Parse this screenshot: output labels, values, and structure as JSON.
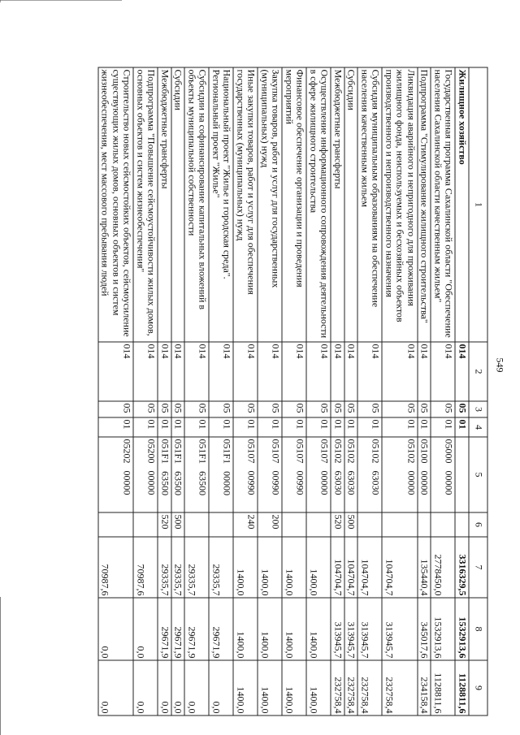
{
  "page_number": "549",
  "columns": [
    "1",
    "2",
    "3",
    "4",
    "5",
    "6",
    "7",
    "8",
    "9"
  ],
  "rows": [
    {
      "name": "Жилищное хозяйство",
      "c2": "014",
      "c3": "05",
      "c4": "01",
      "c5": "",
      "c6": "",
      "c7": "3316329,5",
      "c8": "1532913,6",
      "c9": "1128811,6",
      "bold": true
    },
    {
      "name": "Государственная программа Сахалинской области \"Обеспечение населения Сахалинской области качественным жильем\"",
      "c2": "014",
      "c3": "05",
      "c4": "01",
      "c5": "05000   00000",
      "c6": "",
      "c7": "2778450,0",
      "c8": "1532913,6",
      "c9": "1128811,6"
    },
    {
      "name": "Подпрограмма \"Стимулирование жилищного строительства\"",
      "c2": "014",
      "c3": "05",
      "c4": "01",
      "c5": "05100   00000",
      "c6": "",
      "c7": "135440,4",
      "c8": "345017,6",
      "c9": "234158,4"
    },
    {
      "name": "Ликвидация аварийного и непригодного для проживания жилищного фонда, неиспользуемых и бесхозяйных объектов производственного и непроизводственного назначения",
      "c2": "014",
      "c3": "05",
      "c4": "01",
      "c5": "05102   00000",
      "c6": "",
      "c7": "104704,7",
      "c8": "313945,7",
      "c9": "232758,4"
    },
    {
      "name": "Субсидия муниципальным образованиям на обеспечение населения качественным жильем",
      "c2": "014",
      "c3": "05",
      "c4": "01",
      "c5": "05102   63030",
      "c6": "",
      "c7": "104704,7",
      "c8": "313945,7",
      "c9": "232758,4"
    },
    {
      "name": "Субсидии",
      "c2": "014",
      "c3": "05",
      "c4": "01",
      "c5": "05102   63030",
      "c6": "500",
      "c7": "104704,7",
      "c8": "313945,7",
      "c9": "232758,4"
    },
    {
      "name": "Межбюджетные трансферты",
      "c2": "014",
      "c3": "05",
      "c4": "01",
      "c5": "05102   63030",
      "c6": "520",
      "c7": "104704,7",
      "c8": "313945,7",
      "c9": "232758,4"
    },
    {
      "name": "Осуществление информационного сопровождения деятельности в сфере жилищного строительства",
      "c2": "014",
      "c3": "05",
      "c4": "01",
      "c5": "05107   00000",
      "c6": "",
      "c7": "1400,0",
      "c8": "1400,0",
      "c9": "1400,0"
    },
    {
      "name": "Финансовое обеспечение организации и проведения мероприятий",
      "c2": "014",
      "c3": "05",
      "c4": "01",
      "c5": "05107   00990",
      "c6": "",
      "c7": "1400,0",
      "c8": "1400,0",
      "c9": "1400,0"
    },
    {
      "name": "Закупка товаров, работ и услуг для государственных (муниципальных) нужд",
      "c2": "014",
      "c3": "05",
      "c4": "01",
      "c5": "05107   00990",
      "c6": "200",
      "c7": "1400,0",
      "c8": "1400,0",
      "c9": "1400,0"
    },
    {
      "name": "Иные закупки товаров, работ и услуг для обеспечения государственных (муниципальных) нужд",
      "c2": "014",
      "c3": "05",
      "c4": "01",
      "c5": "05107   00990",
      "c6": "240",
      "c7": "1400,0",
      "c8": "1400,0",
      "c9": "1400,0"
    },
    {
      "name": "Национальный проект \"Жилье и городская среда\". Региональный проект \"Жилье\"",
      "c2": "014",
      "c3": "05",
      "c4": "01",
      "c5": "051F1   00000",
      "c6": "",
      "c7": "29335,7",
      "c8": "29671,9",
      "c9": "0,0"
    },
    {
      "name": "Субсидии на софинансирование капитальных вложений в объекты муниципальной собственности",
      "c2": "014",
      "c3": "05",
      "c4": "01",
      "c5": "051F1   63500",
      "c6": "",
      "c7": "29335,7",
      "c8": "29671,9",
      "c9": "0,0"
    },
    {
      "name": "Субсидии",
      "c2": "014",
      "c3": "05",
      "c4": "01",
      "c5": "051F1   63500",
      "c6": "500",
      "c7": "29335,7",
      "c8": "29671,9",
      "c9": "0,0"
    },
    {
      "name": "Межбюджетные трансферты",
      "c2": "014",
      "c3": "05",
      "c4": "01",
      "c5": "051F1   63500",
      "c6": "520",
      "c7": "29335,7",
      "c8": "29671,9",
      "c9": "0,0"
    },
    {
      "name": "Подпрограмма \"Повышение сейсмоустойчивости жилых домов, основных объектов и систем жизнеобеспечения\"",
      "c2": "014",
      "c3": "05",
      "c4": "01",
      "c5": "05200   00000",
      "c6": "",
      "c7": "70987,6",
      "c8": "0,0",
      "c9": "0,0"
    },
    {
      "name": "Строительство новых сейсмостойких объектов, сейсмоусиление существующих жилых домов, основных объектов и систем жизнеобеспечения, мест массового пребывания людей",
      "c2": "014",
      "c3": "05",
      "c4": "01",
      "c5": "05202   00000",
      "c6": "",
      "c7": "70987,6",
      "c8": "0,0",
      "c9": "0,0"
    }
  ]
}
